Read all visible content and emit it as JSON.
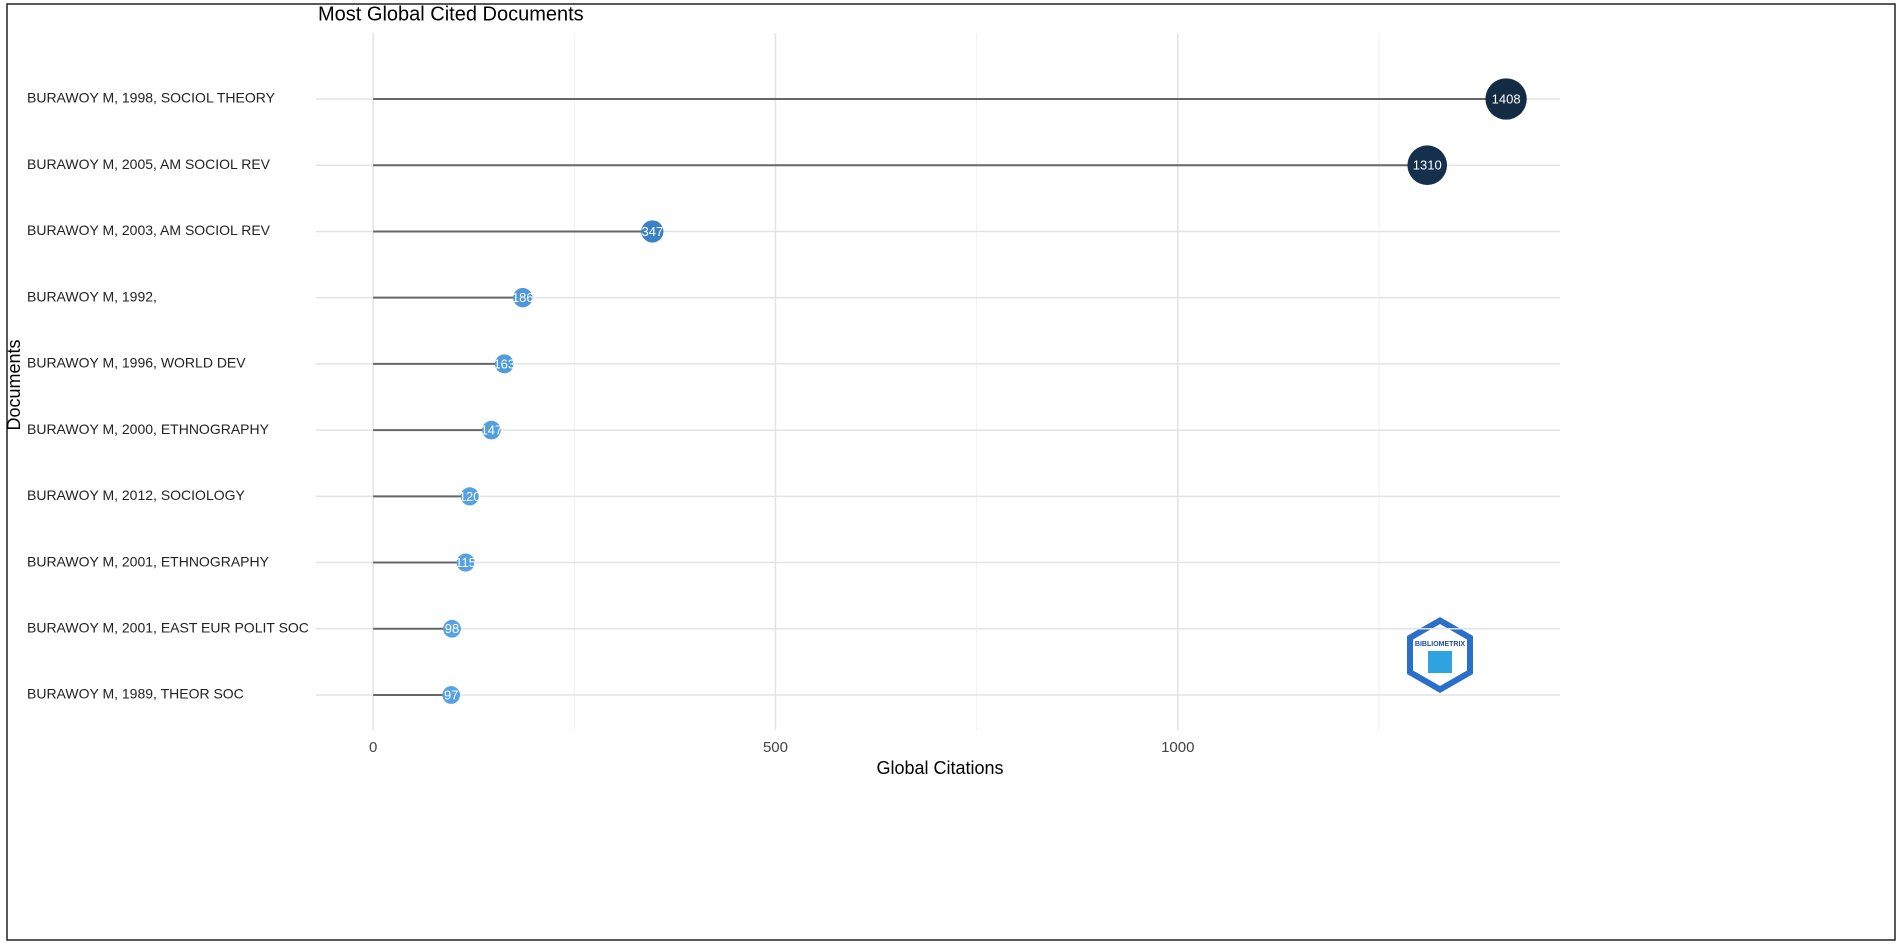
{
  "chart_data": {
    "type": "lollipop",
    "title": "Most Global Cited Documents",
    "x_label": "Global Citations",
    "y_label": "Documents",
    "categories": [
      "BURAWOY M, 1998, SOCIOL THEORY",
      "BURAWOY M, 2005, AM SOCIOL REV",
      "BURAWOY M, 2003, AM SOCIOL REV",
      "BURAWOY M, 1992,",
      "BURAWOY M, 1996, WORLD DEV",
      "BURAWOY M, 2000, ETHNOGRAPHY",
      "BURAWOY M, 2012, SOCIOLOGY",
      "BURAWOY M, 2001, ETHNOGRAPHY",
      "BURAWOY M, 2001, EAST EUR POLIT SOC",
      "BURAWOY M, 1989, THEOR SOC"
    ],
    "values": [
      1408,
      1310,
      347,
      186,
      163,
      147,
      120,
      115,
      98,
      97
    ],
    "colors": [
      "#132b43",
      "#15304d",
      "#3b82c4",
      "#4e98d8",
      "#519cdc",
      "#539ede",
      "#55a1e1",
      "#55a1e1",
      "#56a2e2",
      "#56a2e2"
    ],
    "stem_color": "#666666",
    "xlim": [
      -71,
      1475
    ],
    "xticks": [
      0,
      500,
      1000
    ],
    "grid": true,
    "minor_grid": true,
    "watermark": "BIBLIOMETRIX"
  }
}
